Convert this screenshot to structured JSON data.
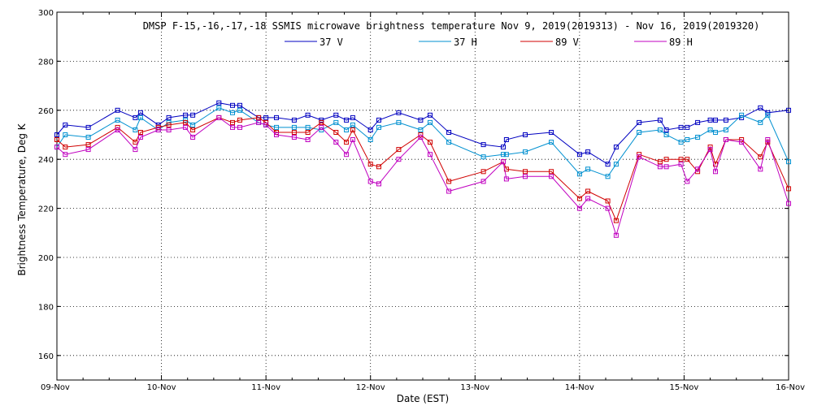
{
  "chart_data": {
    "type": "line",
    "title": "DMSP F-15,-16,-17,-18 SSMIS microwave brightness temperature Nov  9, 2019(2019313) - Nov 16, 2019(2019320)",
    "xlabel": "Date (EST)",
    "ylabel": "Brightness Temperature, Deg K",
    "xlim": [
      0,
      7
    ],
    "ylim": [
      150,
      300
    ],
    "x_ticks": [
      0,
      1,
      2,
      3,
      4,
      5,
      6,
      7
    ],
    "x_tick_labels": [
      "09-Nov",
      "10-Nov",
      "11-Nov",
      "12-Nov",
      "13-Nov",
      "14-Nov",
      "15-Nov",
      "16-Nov"
    ],
    "y_ticks": [
      160,
      180,
      200,
      220,
      240,
      260,
      280,
      300
    ],
    "y_tick_labels": [
      "160",
      "180",
      "200",
      "220",
      "240",
      "260",
      "280",
      "300"
    ],
    "grid": true,
    "legend_position": "top-center",
    "series": [
      {
        "name": "37 V",
        "color": "#0000c0",
        "x": [
          0.0,
          0.08,
          0.3,
          0.58,
          0.75,
          0.8,
          0.97,
          1.07,
          1.23,
          1.3,
          1.55,
          1.68,
          1.75,
          1.93,
          2.0,
          2.1,
          2.27,
          2.4,
          2.53,
          2.67,
          2.77,
          2.83,
          3.0,
          3.08,
          3.27,
          3.48,
          3.57,
          3.75,
          4.08,
          4.27,
          4.3,
          4.48,
          4.73,
          5.0,
          5.08,
          5.27,
          5.35,
          5.57,
          5.77,
          5.83,
          5.97,
          6.03,
          6.13,
          6.25,
          6.3,
          6.4,
          6.55,
          6.73,
          6.8,
          7.0
        ],
        "y": [
          250,
          254,
          253,
          260,
          257,
          259,
          254,
          257,
          258,
          258,
          263,
          262,
          262,
          257,
          257,
          257,
          256,
          258,
          256,
          258,
          256,
          257,
          252,
          256,
          259,
          256,
          258,
          251,
          246,
          245,
          248,
          250,
          251,
          242,
          243,
          238,
          245,
          255,
          256,
          252,
          253,
          253,
          255,
          256,
          256,
          256,
          257,
          261,
          259,
          260
        ]
      },
      {
        "name": "37 H",
        "color": "#0090d0",
        "x": [
          0.0,
          0.08,
          0.3,
          0.58,
          0.75,
          0.8,
          0.97,
          1.07,
          1.23,
          1.3,
          1.55,
          1.68,
          1.75,
          1.93,
          2.0,
          2.1,
          2.27,
          2.4,
          2.53,
          2.67,
          2.77,
          2.83,
          3.0,
          3.08,
          3.27,
          3.48,
          3.57,
          3.75,
          4.08,
          4.27,
          4.3,
          4.48,
          4.73,
          5.0,
          5.08,
          5.27,
          5.35,
          5.57,
          5.77,
          5.83,
          5.97,
          6.03,
          6.13,
          6.25,
          6.3,
          6.4,
          6.55,
          6.73,
          6.8,
          7.0
        ],
        "y": [
          245,
          250,
          249,
          256,
          252,
          257,
          252,
          255,
          256,
          254,
          261,
          259,
          260,
          255,
          254,
          253,
          253,
          253,
          252,
          255,
          252,
          254,
          248,
          253,
          255,
          252,
          255,
          247,
          241,
          242,
          242,
          243,
          247,
          234,
          236,
          233,
          238,
          251,
          252,
          250,
          247,
          248,
          249,
          252,
          251,
          252,
          258,
          255,
          258,
          239
        ]
      },
      {
        "name": "89 V",
        "color": "#d00000",
        "x": [
          0.0,
          0.08,
          0.3,
          0.58,
          0.75,
          0.8,
          0.97,
          1.07,
          1.23,
          1.3,
          1.55,
          1.68,
          1.75,
          1.93,
          2.0,
          2.1,
          2.27,
          2.4,
          2.53,
          2.67,
          2.77,
          2.83,
          3.0,
          3.08,
          3.27,
          3.48,
          3.57,
          3.75,
          4.08,
          4.27,
          4.3,
          4.48,
          4.73,
          5.0,
          5.08,
          5.27,
          5.35,
          5.57,
          5.77,
          5.83,
          5.97,
          6.03,
          6.13,
          6.25,
          6.3,
          6.4,
          6.55,
          6.73,
          6.8,
          7.0
        ],
        "y": [
          248,
          245,
          246,
          253,
          247,
          251,
          253,
          254,
          255,
          252,
          257,
          255,
          256,
          257,
          255,
          251,
          251,
          251,
          255,
          251,
          247,
          252,
          238,
          237,
          244,
          250,
          247,
          231,
          235,
          239,
          236,
          235,
          235,
          224,
          227,
          223,
          215,
          242,
          239,
          240,
          240,
          240,
          235,
          245,
          238,
          248,
          248,
          241,
          247,
          228
        ]
      },
      {
        "name": "89 H",
        "color": "#c000c0",
        "x": [
          0.0,
          0.08,
          0.3,
          0.58,
          0.75,
          0.8,
          0.97,
          1.07,
          1.23,
          1.3,
          1.55,
          1.68,
          1.75,
          1.93,
          2.0,
          2.1,
          2.27,
          2.4,
          2.53,
          2.67,
          2.77,
          2.83,
          3.0,
          3.08,
          3.27,
          3.48,
          3.57,
          3.75,
          4.08,
          4.27,
          4.3,
          4.48,
          4.73,
          5.0,
          5.08,
          5.27,
          5.35,
          5.57,
          5.77,
          5.83,
          5.97,
          6.03,
          6.13,
          6.25,
          6.3,
          6.4,
          6.55,
          6.73,
          6.8,
          7.0
        ],
        "y": [
          245,
          242,
          244,
          252,
          244,
          249,
          252,
          252,
          253,
          249,
          257,
          253,
          253,
          255,
          254,
          250,
          249,
          248,
          253,
          247,
          242,
          248,
          231,
          230,
          240,
          249,
          242,
          227,
          231,
          239,
          232,
          233,
          233,
          220,
          224,
          220,
          209,
          241,
          237,
          237,
          238,
          231,
          236,
          244,
          235,
          248,
          247,
          236,
          248,
          222
        ]
      }
    ]
  }
}
